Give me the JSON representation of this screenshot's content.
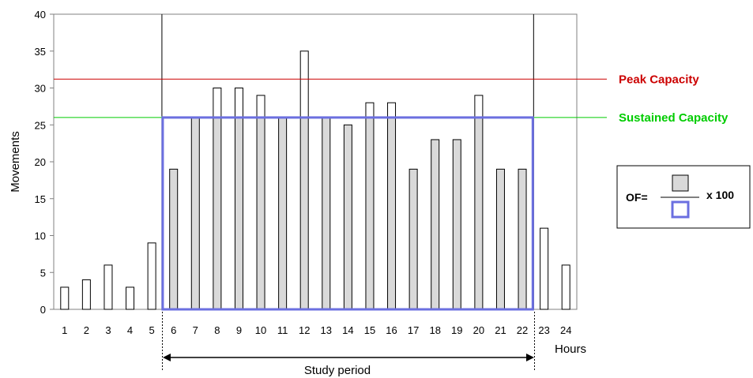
{
  "chart_data": {
    "type": "bar",
    "categories": [
      "1",
      "2",
      "3",
      "4",
      "5",
      "6",
      "7",
      "8",
      "9",
      "10",
      "11",
      "12",
      "13",
      "14",
      "15",
      "16",
      "17",
      "18",
      "19",
      "20",
      "21",
      "22",
      "23",
      "24"
    ],
    "values": [
      3,
      4,
      6,
      3,
      9,
      19,
      26,
      30,
      30,
      29,
      26,
      35,
      26,
      25,
      28,
      28,
      19,
      23,
      23,
      29,
      19,
      19,
      11,
      6
    ],
    "ylabel": "Movements",
    "xlabel": "Hours",
    "ylim": [
      0,
      40
    ],
    "yticks": [
      0,
      5,
      10,
      15,
      20,
      25,
      30,
      35,
      40
    ],
    "grid": false,
    "sustained_capacity": 26,
    "peak_capacity": 31.2,
    "study_period": [
      "6",
      "22"
    ],
    "colors": {
      "below_capacity_fill": "#d9d9d9",
      "above_capacity_fill": "#ffffff",
      "peak_line": "#cc0000",
      "sustained_line": "#00cc00",
      "study_box": "#6b6fe0"
    }
  },
  "labels": {
    "peak": "Peak Capacity",
    "sustained": "Sustained Capacity",
    "study_period": "Study period",
    "xlabel": "Hours",
    "ylabel": "Movements",
    "of_prefix": "OF=",
    "of_suffix": "x 100"
  }
}
